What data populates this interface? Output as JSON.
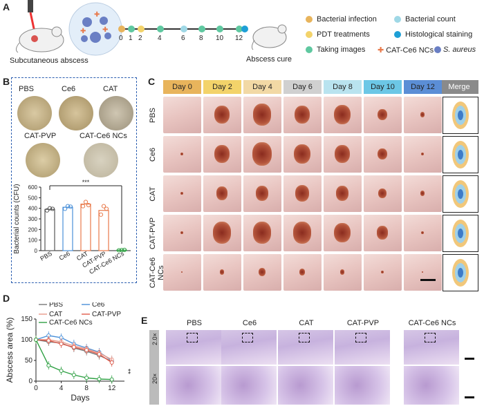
{
  "figure": {
    "panels": {
      "a": "A",
      "b": "B",
      "c": "C",
      "d": "D",
      "e": "E"
    },
    "panelA": {
      "label_left": "Subcutaneous abscess",
      "label_right": "Abscess cure",
      "timeline_days": [
        "0",
        "1",
        "2",
        "4",
        "6",
        "8",
        "10",
        "12"
      ],
      "legend": [
        {
          "text": "Bacterial infection",
          "color": "#e8b45c"
        },
        {
          "text": "Bacterial count",
          "color": "#9fd8e6"
        },
        {
          "text": "PDT treatments",
          "color": "#f3d36a"
        },
        {
          "text": "Histological staining",
          "color": "#1e9fd6"
        },
        {
          "text": "Taking images",
          "color": "#5fc8a0"
        },
        {
          "text": "CAT-Ce6 NCs",
          "color": "#e8794a"
        },
        {
          "text": "S. aureus",
          "color": "#6a7fc4"
        }
      ]
    },
    "panelB": {
      "plates": [
        "PBS",
        "Ce6",
        "CAT",
        "CAT-PVP",
        "CAT-Ce6 NCs"
      ],
      "chart_data": {
        "type": "bar",
        "categories": [
          "PBS",
          "Ce6",
          "CAT",
          "CAT-PVP",
          "CAT-Ce6 NCs"
        ],
        "values": [
          390,
          410,
          440,
          380,
          5
        ],
        "points": [
          [
            380,
            400,
            395
          ],
          [
            395,
            420,
            415
          ],
          [
            420,
            460,
            430
          ],
          [
            340,
            420,
            395
          ],
          [
            3,
            5,
            7
          ]
        ],
        "colors": [
          "#555555",
          "#4a90d9",
          "#e8794a",
          "#e8794a",
          "#2ea043"
        ],
        "ylabel": "Bacterial counts (CFU)",
        "yticks": [
          "0",
          "100",
          "200",
          "300",
          "400",
          "500",
          "600"
        ],
        "ylim": [
          0,
          600
        ],
        "significance": "***"
      }
    },
    "panelC": {
      "days": [
        "Day 0",
        "Day 2",
        "Day 4",
        "Day 6",
        "Day 8",
        "Day 10",
        "Day 12"
      ],
      "day_colors": [
        "#e8b45c",
        "#f3d36a",
        "#f2d9a5",
        "#d0d0d0",
        "#b9e3ef",
        "#6cc7e6",
        "#5b8ed6"
      ],
      "merge_label": "Merge",
      "rows": [
        "PBS",
        "Ce6",
        "CAT",
        "CAT-PVP",
        "CAT-Ce6 NCs"
      ]
    },
    "panelD": {
      "chart_data": {
        "type": "line",
        "x": [
          0,
          2,
          4,
          6,
          8,
          10,
          12
        ],
        "series": [
          {
            "name": "PBS",
            "values": [
              100,
              95,
              92,
              80,
              72,
              62,
              48
            ],
            "color": "#777777"
          },
          {
            "name": "Ce6",
            "values": [
              100,
              110,
              105,
              90,
              80,
              70,
              50
            ],
            "color": "#4a90d9"
          },
          {
            "name": "CAT",
            "values": [
              100,
              100,
              95,
              85,
              78,
              68,
              52
            ],
            "color": "#e89a8a"
          },
          {
            "name": "CAT-PVP",
            "values": [
              100,
              98,
              90,
              82,
              75,
              65,
              45
            ],
            "color": "#e05a4a"
          },
          {
            "name": "CAT-Ce6 NCs",
            "values": [
              100,
              38,
              25,
              15,
              8,
              5,
              4
            ],
            "color": "#2ea043"
          }
        ],
        "xlabel": "Days",
        "ylabel": "Abscess area (%)",
        "xticks": [
          "0",
          "4",
          "8",
          "12"
        ],
        "yticks": [
          "0",
          "50",
          "100",
          "150"
        ],
        "ylim": [
          0,
          150
        ],
        "significance": "**"
      }
    },
    "panelE": {
      "columns": [
        "PBS",
        "Ce6",
        "CAT",
        "CAT-PVP",
        "CAT-Ce6 NCs"
      ],
      "magnifications": [
        "2.0×",
        "20×"
      ]
    }
  }
}
